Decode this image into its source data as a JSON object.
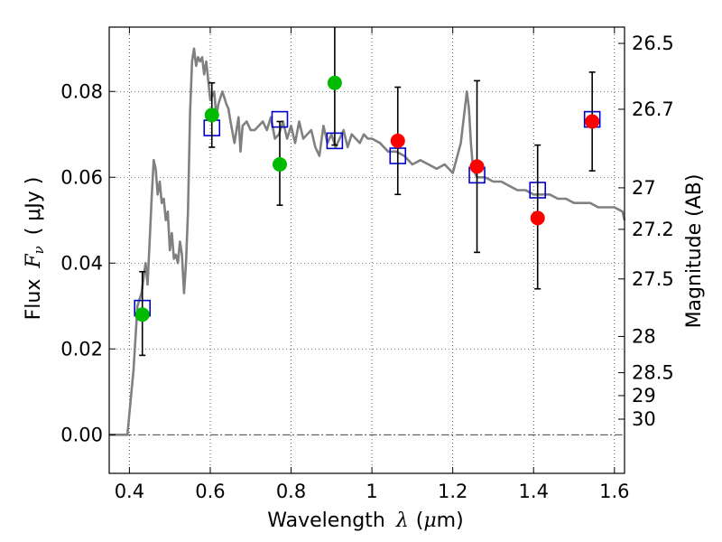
{
  "chart_data": {
    "type": "scatter",
    "xlabel_prefix": "Wavelength",
    "xlabel_symbol": "λ",
    "xlabel_unit_open": "(",
    "xlabel_unit_mu": "μ",
    "xlabel_unit_rest": "m)",
    "ylabel_prefix": "Flux",
    "ylabel_symbol": "F",
    "ylabel_subscript": "ν",
    "ylabel_unit": "( μJy )",
    "y2label": "Magnitude (AB)",
    "xlim": [
      0.35,
      1.625
    ],
    "ylim": [
      -0.009,
      0.095
    ],
    "x_ticks": [
      {
        "v": 0.4,
        "label": "0.4"
      },
      {
        "v": 0.6,
        "label": "0.6"
      },
      {
        "v": 0.8,
        "label": "0.8"
      },
      {
        "v": 1.0,
        "label": "1"
      },
      {
        "v": 1.2,
        "label": "1.2"
      },
      {
        "v": 1.4,
        "label": "1.4"
      },
      {
        "v": 1.6,
        "label": "1.6"
      }
    ],
    "y_ticks": [
      {
        "v": 0.0,
        "label": "0.00"
      },
      {
        "v": 0.02,
        "label": "0.02"
      },
      {
        "v": 0.04,
        "label": "0.04"
      },
      {
        "v": 0.06,
        "label": "0.06"
      },
      {
        "v": 0.08,
        "label": "0.08"
      }
    ],
    "y2_ticks": [
      {
        "mag": 26.5,
        "label": "26.5"
      },
      {
        "mag": 26.7,
        "label": "26.7"
      },
      {
        "mag": 27.0,
        "label": "27"
      },
      {
        "mag": 27.2,
        "label": "27.2"
      },
      {
        "mag": 27.5,
        "label": "27.5"
      },
      {
        "mag": 28.0,
        "label": "28"
      },
      {
        "mag": 28.5,
        "label": "28.5"
      },
      {
        "mag": 29.0,
        "label": "29"
      },
      {
        "mag": 30.0,
        "label": "30"
      }
    ],
    "grid": true,
    "zero_line": true,
    "colors": {
      "model": "#808080",
      "model_photometry": "#0000cc",
      "observed_green": "#00bb00",
      "observed_red": "#ff0000",
      "errorbar": "#000000"
    },
    "series": [
      {
        "kind": "model_spectrum",
        "x": [
          0.35,
          0.395,
          0.4,
          0.41,
          0.42,
          0.43,
          0.44,
          0.445,
          0.45,
          0.455,
          0.46,
          0.465,
          0.47,
          0.475,
          0.48,
          0.485,
          0.49,
          0.495,
          0.5,
          0.505,
          0.51,
          0.515,
          0.52,
          0.525,
          0.53,
          0.535,
          0.54,
          0.545,
          0.55,
          0.555,
          0.56,
          0.565,
          0.57,
          0.575,
          0.58,
          0.585,
          0.59,
          0.6,
          0.61,
          0.615,
          0.62,
          0.63,
          0.64,
          0.645,
          0.65,
          0.66,
          0.67,
          0.675,
          0.68,
          0.69,
          0.7,
          0.71,
          0.72,
          0.73,
          0.74,
          0.75,
          0.76,
          0.77,
          0.78,
          0.79,
          0.8,
          0.81,
          0.82,
          0.83,
          0.84,
          0.85,
          0.86,
          0.87,
          0.88,
          0.89,
          0.9,
          0.91,
          0.92,
          0.93,
          0.94,
          0.95,
          0.96,
          0.97,
          0.98,
          0.99,
          1.0,
          1.02,
          1.04,
          1.06,
          1.08,
          1.1,
          1.12,
          1.14,
          1.16,
          1.18,
          1.2,
          1.22,
          1.235,
          1.24,
          1.245,
          1.25,
          1.26,
          1.28,
          1.3,
          1.32,
          1.34,
          1.36,
          1.38,
          1.4,
          1.42,
          1.44,
          1.46,
          1.48,
          1.5,
          1.52,
          1.54,
          1.56,
          1.58,
          1.6,
          1.62,
          1.625
        ],
        "y": [
          0.0,
          0.0,
          0.005,
          0.015,
          0.03,
          0.033,
          0.04,
          0.035,
          0.045,
          0.055,
          0.064,
          0.062,
          0.056,
          0.059,
          0.054,
          0.055,
          0.05,
          0.052,
          0.043,
          0.047,
          0.041,
          0.042,
          0.04,
          0.045,
          0.042,
          0.033,
          0.04,
          0.052,
          0.075,
          0.087,
          0.09,
          0.086,
          0.088,
          0.087,
          0.088,
          0.084,
          0.087,
          0.078,
          0.08,
          0.074,
          0.077,
          0.08,
          0.077,
          0.076,
          0.073,
          0.068,
          0.074,
          0.066,
          0.072,
          0.073,
          0.071,
          0.071,
          0.072,
          0.073,
          0.071,
          0.074,
          0.069,
          0.07,
          0.073,
          0.069,
          0.072,
          0.068,
          0.073,
          0.069,
          0.07,
          0.071,
          0.067,
          0.065,
          0.072,
          0.068,
          0.07,
          0.067,
          0.069,
          0.071,
          0.067,
          0.07,
          0.069,
          0.068,
          0.07,
          0.069,
          0.069,
          0.068,
          0.066,
          0.066,
          0.065,
          0.063,
          0.064,
          0.063,
          0.062,
          0.063,
          0.061,
          0.068,
          0.08,
          0.076,
          0.068,
          0.062,
          0.06,
          0.06,
          0.059,
          0.059,
          0.058,
          0.057,
          0.057,
          0.056,
          0.056,
          0.056,
          0.055,
          0.055,
          0.054,
          0.054,
          0.054,
          0.053,
          0.053,
          0.053,
          0.052,
          0.05
        ]
      },
      {
        "kind": "model_photometry",
        "x": [
          0.432,
          0.604,
          0.772,
          0.908,
          1.064,
          1.26,
          1.41,
          1.545
        ],
        "y": [
          0.0295,
          0.0715,
          0.0735,
          0.0685,
          0.065,
          0.0605,
          0.057,
          0.0735
        ]
      },
      {
        "kind": "observed",
        "points": [
          {
            "x": 0.432,
            "y": 0.028,
            "ylo": 0.0185,
            "yhi": 0.038,
            "color": "#00bb00"
          },
          {
            "x": 0.604,
            "y": 0.0745,
            "ylo": 0.067,
            "yhi": 0.082,
            "color": "#00bb00"
          },
          {
            "x": 0.772,
            "y": 0.063,
            "ylo": 0.0535,
            "yhi": 0.073,
            "color": "#00bb00"
          },
          {
            "x": 0.908,
            "y": 0.082,
            "ylo": 0.0675,
            "yhi": 0.096,
            "color": "#00bb00"
          },
          {
            "x": 1.064,
            "y": 0.0685,
            "ylo": 0.056,
            "yhi": 0.081,
            "color": "#ff0000"
          },
          {
            "x": 1.26,
            "y": 0.0625,
            "ylo": 0.0425,
            "yhi": 0.0825,
            "color": "#ff0000"
          },
          {
            "x": 1.41,
            "y": 0.0505,
            "ylo": 0.034,
            "yhi": 0.0675,
            "color": "#ff0000"
          },
          {
            "x": 1.545,
            "y": 0.073,
            "ylo": 0.0615,
            "yhi": 0.0845,
            "color": "#ff0000"
          }
        ]
      }
    ]
  }
}
